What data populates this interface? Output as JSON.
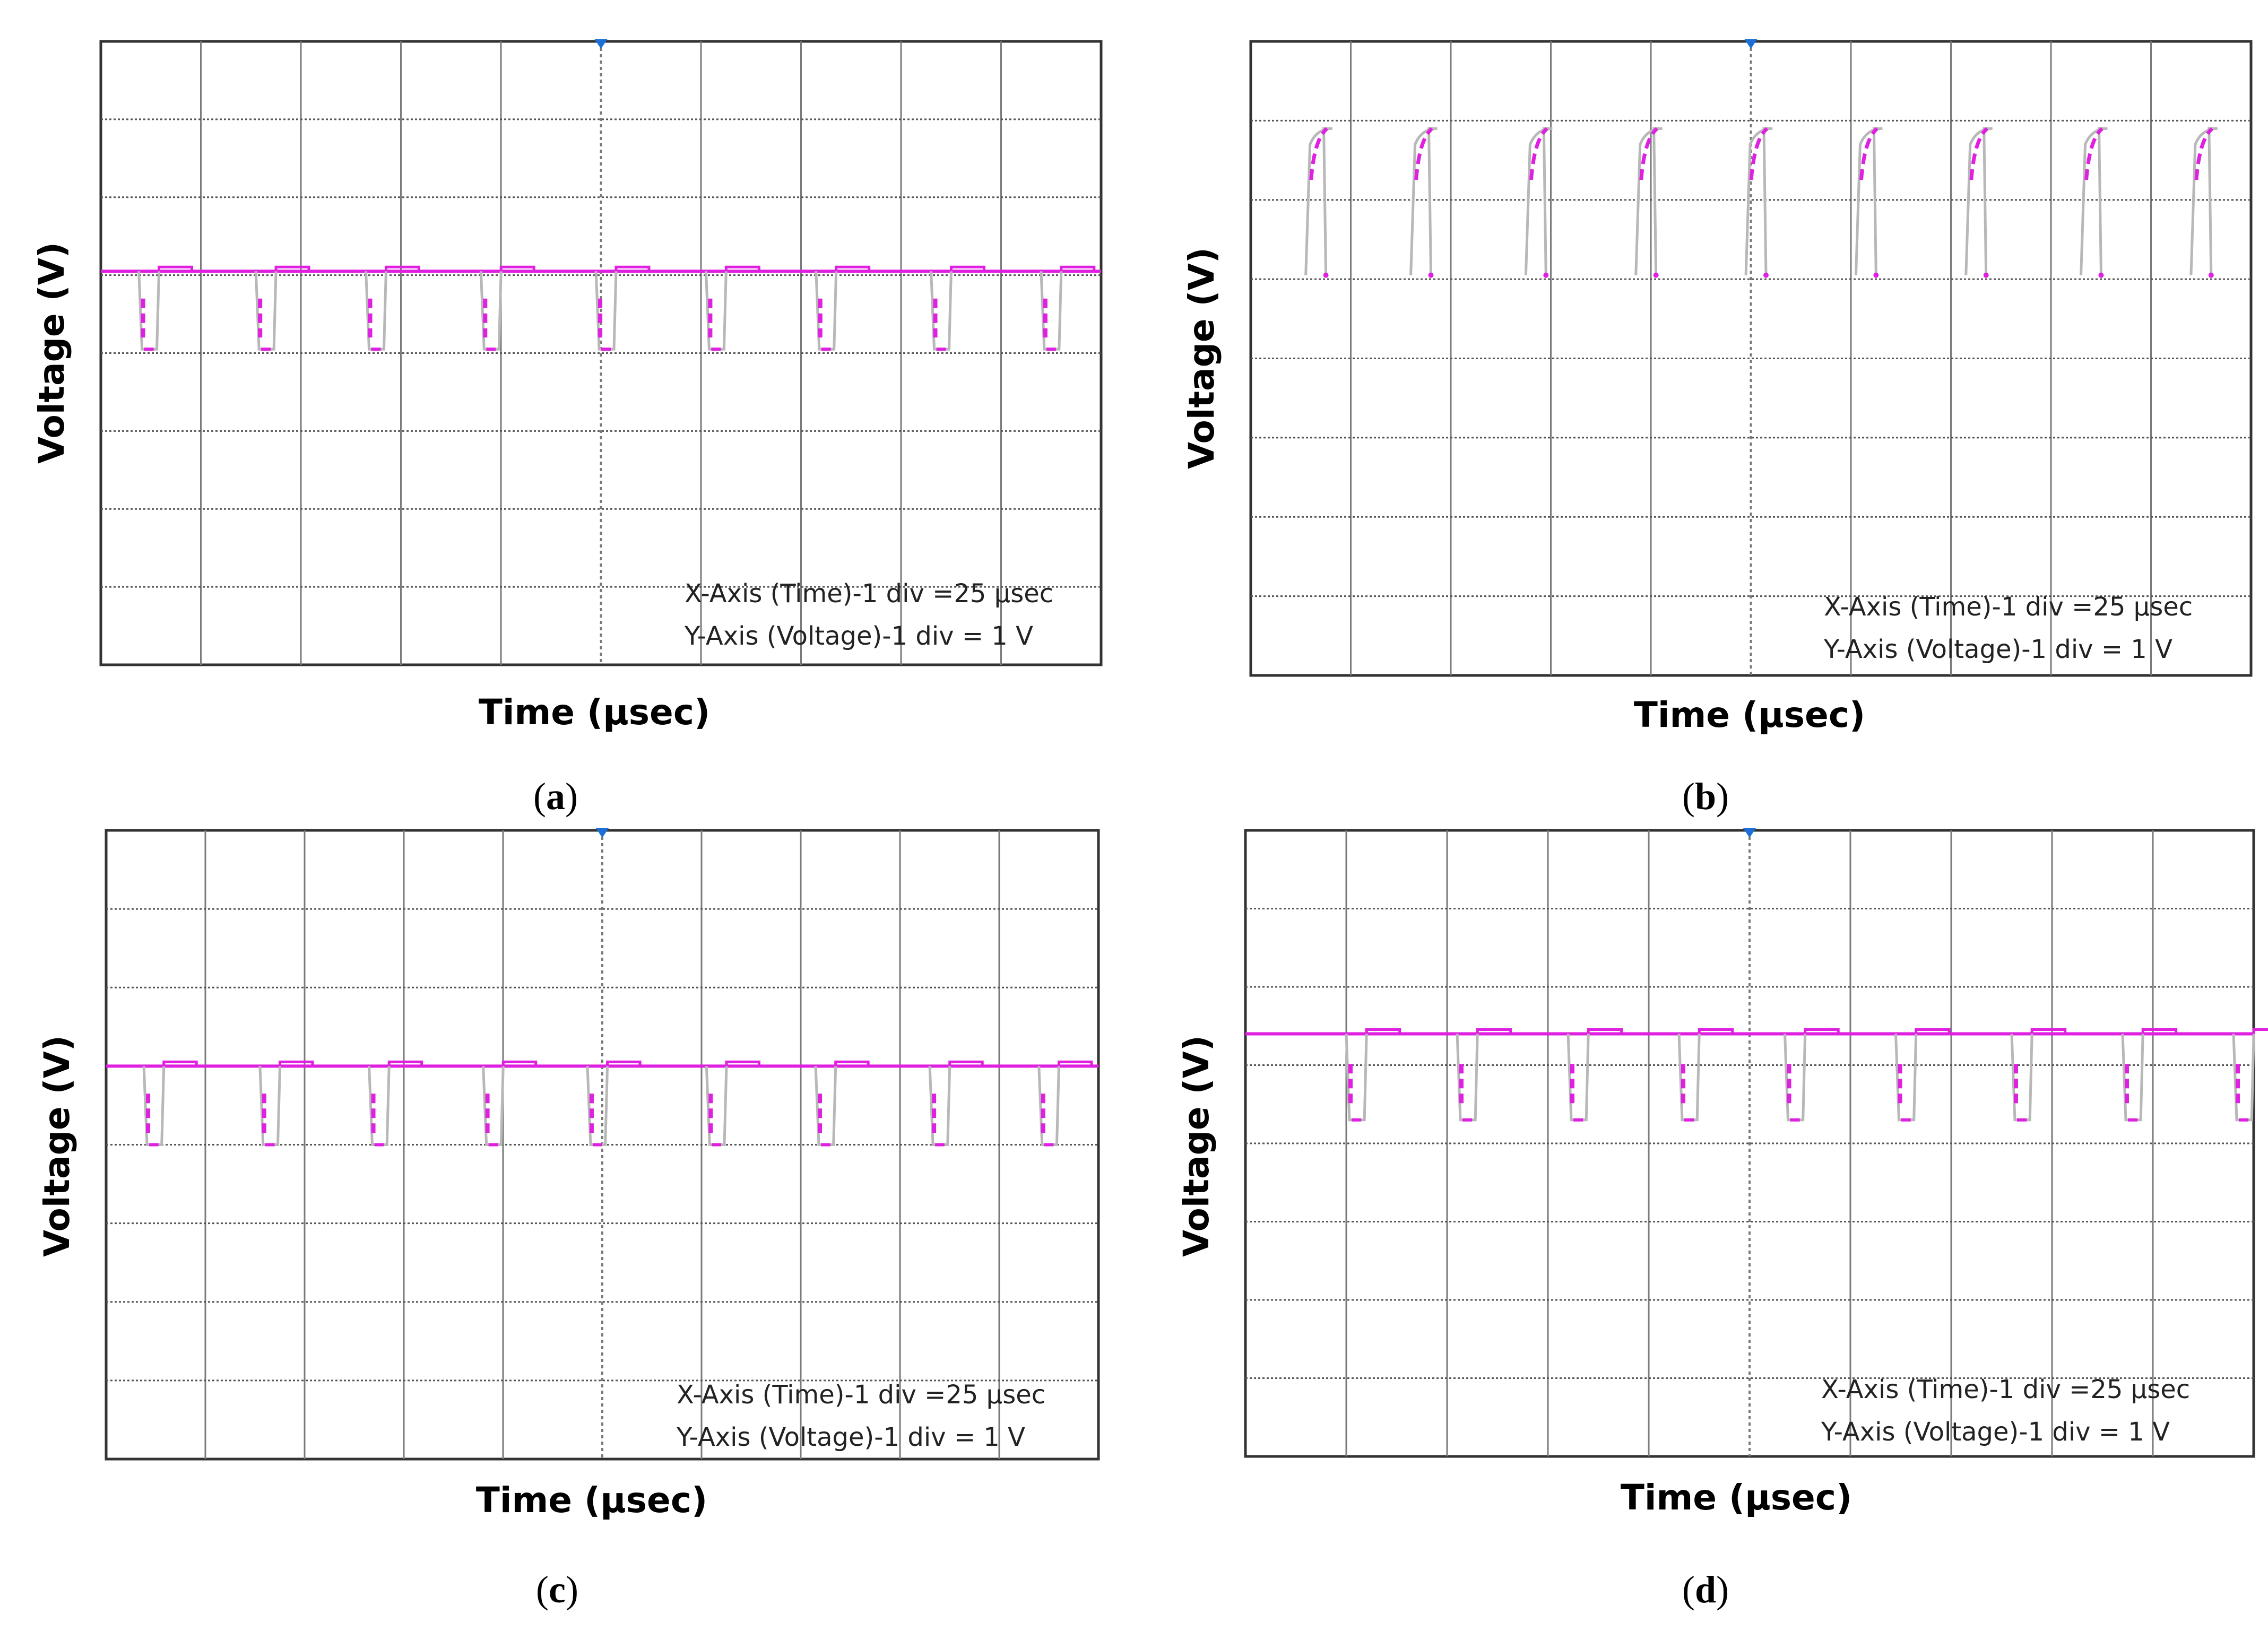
{
  "chart_data": [
    {
      "type": "line",
      "panel_label": "a",
      "mode": "low_pulses",
      "xlabel": "Time (µsec)",
      "ylabel": "Voltage (V)",
      "note_x": "X-Axis (Time)-1 div =25 µsec",
      "note_y": "Y-Axis (Voltage)-1 div = 1 V",
      "divisions": {
        "x": 10,
        "y": 8
      },
      "high_level_div": 2.95,
      "low_level_div": 3.95,
      "pulse_times_div": [
        0.38,
        1.55,
        2.65,
        3.8,
        4.95,
        6.05,
        7.15,
        8.3,
        9.4
      ]
    },
    {
      "type": "line",
      "panel_label": "b",
      "mode": "high_pulses",
      "xlabel": "Time (µsec)",
      "ylabel": "Voltage (V)",
      "note_x": "X-Axis (Time)-1 div =25 µsec",
      "note_y": "Y-Axis (Voltage)-1 div = 1 V",
      "divisions": {
        "x": 10,
        "y": 8
      },
      "high_level_div": 1.1,
      "low_level_div": 2.95,
      "pulse_times_div": [
        0.55,
        1.6,
        2.75,
        3.85,
        4.95,
        6.05,
        7.15,
        8.3,
        9.4
      ]
    },
    {
      "type": "line",
      "panel_label": "c",
      "mode": "low_pulses",
      "xlabel": "Time (µsec)",
      "ylabel": "Voltage (V)",
      "note_x": "X-Axis (Time)-1 div =25 µsec",
      "note_y": "Y-Axis (Voltage)-1 div = 1 V",
      "divisions": {
        "x": 10,
        "y": 8
      },
      "high_level_div": 3.0,
      "low_level_div": 4.0,
      "pulse_times_div": [
        0.38,
        1.55,
        2.65,
        3.8,
        4.85,
        6.05,
        7.15,
        8.3,
        9.4
      ]
    },
    {
      "type": "line",
      "panel_label": "d",
      "mode": "low_pulses",
      "xlabel": "Time (µsec)",
      "ylabel": "Voltage (V)",
      "note_x": "X-Axis (Time)-1 div =25 µsec",
      "note_y": "Y-Axis (Voltage)-1 div = 1 V",
      "divisions": {
        "x": 10,
        "y": 8
      },
      "high_level_div": 2.6,
      "low_level_div": 3.7,
      "pulse_times_div": [
        1.0,
        2.1,
        3.2,
        4.3,
        5.35,
        6.45,
        7.6,
        8.7,
        9.8
      ]
    }
  ],
  "colors": {
    "grid": "#7a7a7a",
    "trace_grey": "#b8b8b8",
    "trace_magenta": "#e020e0",
    "trigger_marker": "#1b6fd6"
  },
  "captions": [
    {
      "open": "(",
      "letter": "a",
      "close": ")"
    },
    {
      "open": "(",
      "letter": "b",
      "close": ")"
    },
    {
      "open": "(",
      "letter": "c",
      "close": ")"
    },
    {
      "open": "(",
      "letter": "d",
      "close": ")"
    }
  ]
}
